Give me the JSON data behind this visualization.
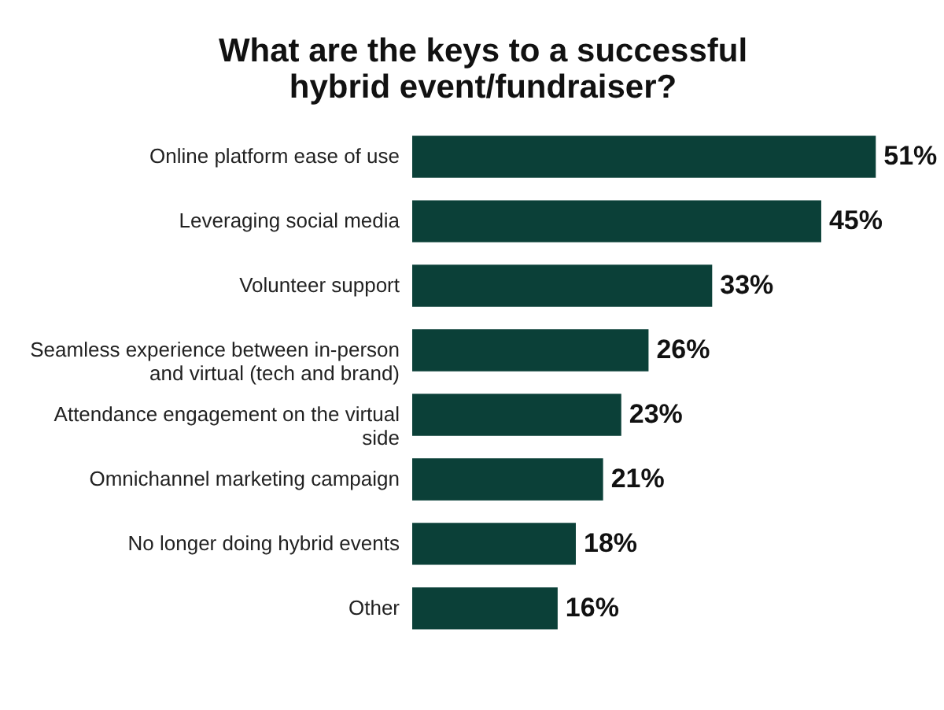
{
  "chart_data": {
    "type": "bar",
    "orientation": "horizontal",
    "title": "What are the keys to a successful hybrid event/fundraiser?",
    "categories": [
      "Online platform ease of use",
      "Leveraging social media",
      "Volunteer support",
      "Seamless experience between in-person and virtual (tech and brand)",
      "Attendance engagement on the virtual side",
      "Omnichannel marketing campaign",
      "No longer doing hybrid events",
      "Other"
    ],
    "values": [
      51,
      45,
      33,
      26,
      23,
      21,
      18,
      16
    ],
    "value_labels": [
      "51%",
      "45%",
      "33%",
      "26%",
      "23%",
      "21%",
      "18%",
      "16%"
    ],
    "color": "#0b4038"
  }
}
